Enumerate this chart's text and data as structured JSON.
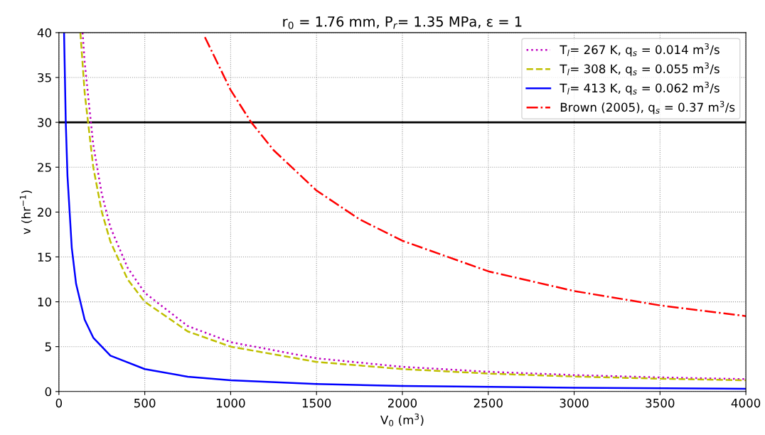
{
  "chart_data": {
    "type": "line",
    "title": "r$_{0}$ = 1.76 mm, P$_{r}$= 1.35 MPa, ε = 1",
    "xlabel": "V$_{0}$ (m$^{3}$)",
    "ylabel": "v (hr$^{−1}$)",
    "xlim": [
      0,
      4000
    ],
    "ylim": [
      0,
      40
    ],
    "xticks": [
      0,
      500,
      1000,
      1500,
      2000,
      2500,
      3000,
      3500,
      4000
    ],
    "yticks": [
      0,
      5,
      10,
      15,
      20,
      25,
      30,
      35,
      40
    ],
    "grid": true,
    "legend": "top right",
    "ref_lines": [
      {
        "axis": "y",
        "value": 30,
        "color": "#000000",
        "line_style": "solid"
      }
    ],
    "series": [
      {
        "name": "T$_{l}$= 267 K, q$_{s}$ = 0.014 m$^{3}$/s",
        "color": "#bf00bf",
        "line_style": "dotted",
        "x": [
          138,
          150,
          200,
          250,
          300,
          400,
          500,
          750,
          1000,
          1500,
          2000,
          2500,
          3000,
          3500,
          4000
        ],
        "values": [
          40,
          36.7,
          27.5,
          22,
          18.3,
          13.8,
          11,
          7.3,
          5.5,
          3.7,
          2.75,
          2.2,
          1.83,
          1.57,
          1.38
        ]
      },
      {
        "name": "T$_{l}$= 308 K, q$_{s}$ = 0.055 m$^{3}$/s",
        "color": "#bfbf00",
        "line_style": "dashed",
        "x": [
          125,
          150,
          200,
          250,
          300,
          400,
          500,
          750,
          1000,
          1500,
          2000,
          2500,
          3000,
          3500,
          4000
        ],
        "values": [
          40,
          33.3,
          25,
          20,
          16.7,
          12.5,
          10,
          6.7,
          5,
          3.3,
          2.5,
          2.0,
          1.67,
          1.43,
          1.25
        ]
      },
      {
        "name": "T$_{l}$= 413 K, q$_{s}$ = 0.062 m$^{3}$/s",
        "color": "#0000ff",
        "line_style": "solid",
        "x": [
          30,
          40,
          50,
          75,
          100,
          150,
          200,
          300,
          500,
          750,
          1000,
          1500,
          2000,
          3000,
          4000
        ],
        "values": [
          40,
          30,
          24,
          16,
          12,
          8,
          6,
          4,
          2.5,
          1.65,
          1.25,
          0.83,
          0.62,
          0.42,
          0.31
        ]
      },
      {
        "name": "Brown (2005), q$_{s}$ = 0.37 m$^{3}$/s",
        "color": "#ff0000",
        "line_style": "dashdot",
        "x": [
          850,
          1000,
          1120,
          1250,
          1500,
          1750,
          2000,
          2500,
          3000,
          3500,
          4000
        ],
        "values": [
          39.5,
          33.6,
          30,
          26.9,
          22.4,
          19.2,
          16.8,
          13.4,
          11.2,
          9.6,
          8.4
        ]
      }
    ]
  }
}
